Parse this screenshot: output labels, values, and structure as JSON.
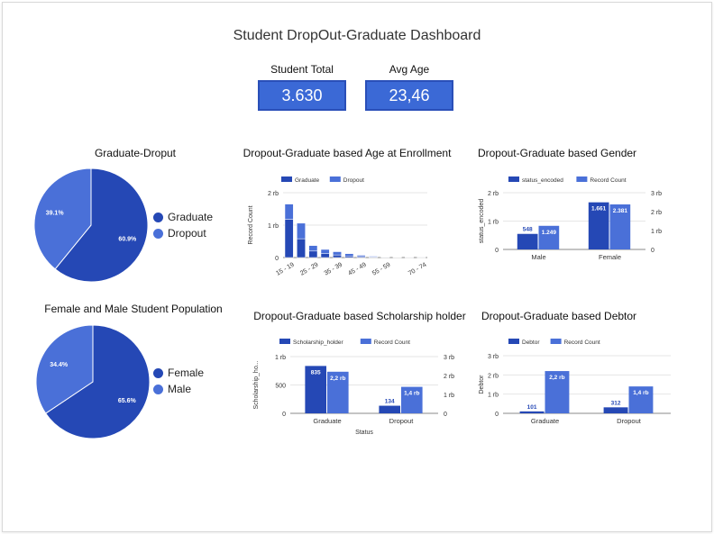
{
  "dashboard": {
    "title": "Student DropOut-Graduate Dashboard"
  },
  "kpis": [
    {
      "label": "Student Total",
      "value": "3.630"
    },
    {
      "label": "Avg Age",
      "value": "23,46"
    }
  ],
  "colors": {
    "dark": "#2548b5",
    "light": "#4a70d8",
    "grid": "#e6e6e6",
    "axis": "#666666"
  },
  "chart_data": [
    {
      "id": "graduate-dropout-pie",
      "type": "pie",
      "title": "Graduate-Droput",
      "slices": [
        {
          "label": "Graduate",
          "value": 60.9,
          "text": "60.9%",
          "color": "#2548b5"
        },
        {
          "label": "Dropout",
          "value": 39.1,
          "text": "39.1%",
          "color": "#4a70d8"
        }
      ]
    },
    {
      "id": "gender-pie",
      "type": "pie",
      "title": "Female and Male Student Population",
      "slices": [
        {
          "label": "Female",
          "value": 65.6,
          "text": "65.6%",
          "color": "#2548b5"
        },
        {
          "label": "Male",
          "value": 34.4,
          "text": "34.4%",
          "color": "#4a70d8"
        }
      ]
    },
    {
      "id": "age-bar",
      "type": "bar",
      "title": "Dropout-Graduate based Age at Enrollment",
      "stacked": true,
      "ylabel": "Record Count",
      "ylim": [
        0,
        2000
      ],
      "yticks": [
        "0",
        "1 rb",
        "2 rb"
      ],
      "categories": [
        "15 - 19",
        "20 - 24",
        "25 - 29",
        "30 - 34",
        "35 - 39",
        "40 - 44",
        "45 - 49",
        "50 - 54",
        "55 - 59",
        "60 - 64",
        "65 - 69",
        "70 - 74"
      ],
      "xtick_labels": [
        "15 - 19",
        "25 - 29",
        "35 - 39",
        "45 - 49",
        "55 - 59",
        "70 - 74"
      ],
      "series": [
        {
          "name": "Graduate",
          "color": "#2548b5",
          "values": [
            1180,
            580,
            200,
            120,
            80,
            50,
            30,
            15,
            8,
            5,
            2,
            1
          ]
        },
        {
          "name": "Dropout",
          "color": "#4a70d8",
          "values": [
            470,
            480,
            170,
            130,
            100,
            70,
            40,
            25,
            12,
            6,
            3,
            2
          ]
        }
      ]
    },
    {
      "id": "gender-bar",
      "type": "bar",
      "title": "Dropout-Graduate based Gender",
      "ylabel": "status_encoded",
      "ylim": [
        0,
        2000
      ],
      "yticks": [
        "0",
        "1 rb",
        "2 rb"
      ],
      "y2ticks": [
        "0",
        "1 rb",
        "2 rb",
        "3 rb"
      ],
      "categories": [
        "Male",
        "Female"
      ],
      "series": [
        {
          "name": "status_encoded",
          "color": "#2548b5",
          "values": [
            548,
            1661
          ],
          "labels": [
            "548",
            "1.661"
          ]
        },
        {
          "name": "Record Count",
          "color": "#4a70d8",
          "values": [
            1249,
            2381
          ],
          "labels": [
            "1.249",
            "2.381"
          ]
        }
      ]
    },
    {
      "id": "scholarship-bar",
      "type": "bar",
      "title": "Dropout-Graduate based Scholarship holder",
      "ylabel": "Scholarship_ho...",
      "xlabel": "Status",
      "ylim": [
        0,
        1000
      ],
      "yticks": [
        "0",
        "500",
        "1 rb"
      ],
      "y2ticks": [
        "0",
        "1 rb",
        "2 rb",
        "3 rb"
      ],
      "categories": [
        "Graduate",
        "Dropout"
      ],
      "series": [
        {
          "name": "Scholarship_holder",
          "color": "#2548b5",
          "values": [
            835,
            134
          ],
          "labels": [
            "835",
            "134"
          ]
        },
        {
          "name": "Record Count",
          "color": "#4a70d8",
          "values": [
            2200,
            1400
          ],
          "labels": [
            "2,2 rb",
            "1,4 rb"
          ]
        }
      ]
    },
    {
      "id": "debtor-bar",
      "type": "bar",
      "title": "Dropout-Graduate based Debtor",
      "ylabel": "Debtor",
      "ylim": [
        0,
        3000
      ],
      "yticks": [
        "0",
        "1 rb",
        "2 rb",
        "3 rb"
      ],
      "categories": [
        "Graduate",
        "Dropout"
      ],
      "series": [
        {
          "name": "Debtor",
          "color": "#2548b5",
          "values": [
            101,
            312
          ],
          "labels": [
            "101",
            "312"
          ]
        },
        {
          "name": "Record Count",
          "color": "#4a70d8",
          "values": [
            2200,
            1400
          ],
          "labels": [
            "2,2 rb",
            "1,4 rb"
          ]
        }
      ]
    }
  ]
}
